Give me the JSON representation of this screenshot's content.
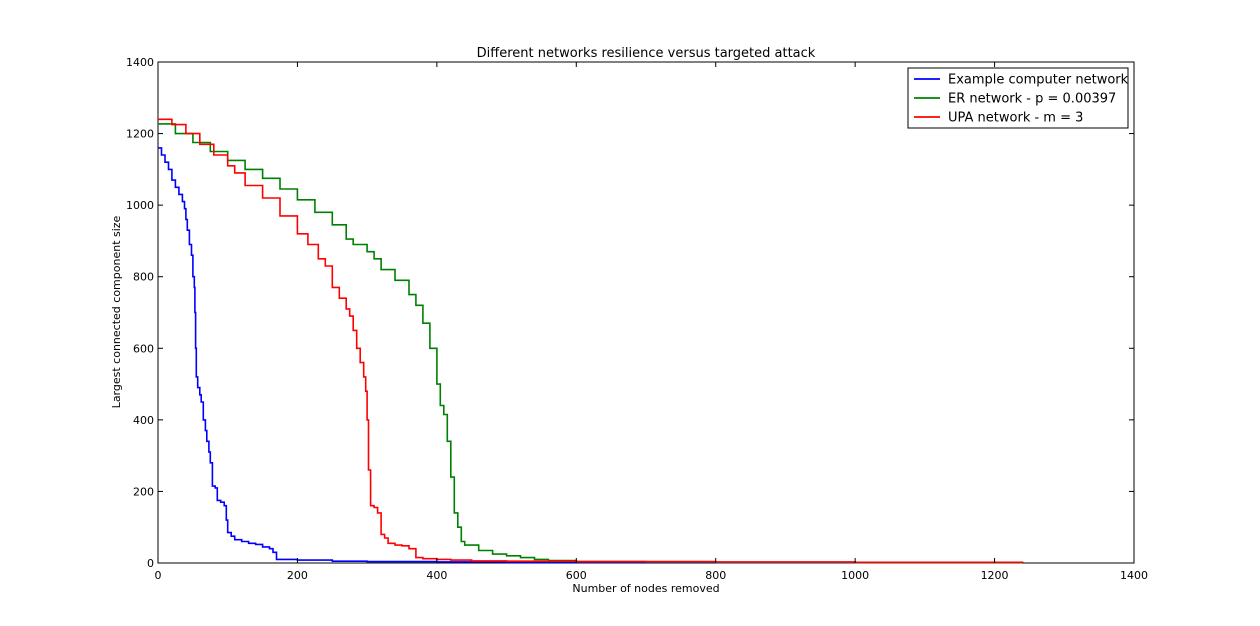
{
  "chart_data": {
    "type": "line",
    "title": "Different networks resilience versus targeted attack",
    "xlabel": "Number of nodes removed",
    "ylabel": "Largest connected component size",
    "xlim": [
      0,
      1400
    ],
    "ylim": [
      0,
      1400
    ],
    "xticks": [
      0,
      200,
      400,
      600,
      800,
      1000,
      1200,
      1400
    ],
    "yticks": [
      0,
      200,
      400,
      600,
      800,
      1000,
      1200,
      1400
    ],
    "grid": false,
    "legend_position": "top-right",
    "series": [
      {
        "name": "Example computer network",
        "color": "#0000ff",
        "points": [
          [
            0,
            1160
          ],
          [
            5,
            1140
          ],
          [
            10,
            1120
          ],
          [
            15,
            1100
          ],
          [
            20,
            1070
          ],
          [
            25,
            1050
          ],
          [
            30,
            1030
          ],
          [
            35,
            1010
          ],
          [
            38,
            990
          ],
          [
            40,
            960
          ],
          [
            42,
            930
          ],
          [
            45,
            890
          ],
          [
            48,
            860
          ],
          [
            50,
            800
          ],
          [
            52,
            770
          ],
          [
            53,
            700
          ],
          [
            54,
            600
          ],
          [
            55,
            520
          ],
          [
            57,
            490
          ],
          [
            60,
            470
          ],
          [
            62,
            450
          ],
          [
            65,
            400
          ],
          [
            68,
            370
          ],
          [
            70,
            340
          ],
          [
            73,
            310
          ],
          [
            75,
            280
          ],
          [
            78,
            215
          ],
          [
            82,
            210
          ],
          [
            85,
            175
          ],
          [
            90,
            170
          ],
          [
            95,
            160
          ],
          [
            98,
            120
          ],
          [
            100,
            85
          ],
          [
            105,
            75
          ],
          [
            110,
            65
          ],
          [
            120,
            60
          ],
          [
            130,
            55
          ],
          [
            140,
            52
          ],
          [
            150,
            45
          ],
          [
            160,
            40
          ],
          [
            165,
            30
          ],
          [
            170,
            10
          ],
          [
            200,
            8
          ],
          [
            250,
            5
          ],
          [
            300,
            4
          ],
          [
            400,
            3
          ],
          [
            500,
            2
          ],
          [
            600,
            2
          ],
          [
            800,
            1
          ],
          [
            1000,
            1
          ],
          [
            1240,
            1
          ]
        ]
      },
      {
        "name": "ER network - p = 0.00397",
        "color": "#008000",
        "points": [
          [
            0,
            1227
          ],
          [
            25,
            1200
          ],
          [
            50,
            1175
          ],
          [
            75,
            1150
          ],
          [
            100,
            1125
          ],
          [
            125,
            1100
          ],
          [
            150,
            1075
          ],
          [
            175,
            1045
          ],
          [
            200,
            1015
          ],
          [
            225,
            980
          ],
          [
            250,
            945
          ],
          [
            270,
            905
          ],
          [
            280,
            890
          ],
          [
            300,
            870
          ],
          [
            310,
            850
          ],
          [
            320,
            820
          ],
          [
            340,
            790
          ],
          [
            360,
            750
          ],
          [
            370,
            720
          ],
          [
            380,
            670
          ],
          [
            390,
            600
          ],
          [
            400,
            500
          ],
          [
            405,
            440
          ],
          [
            410,
            415
          ],
          [
            415,
            340
          ],
          [
            420,
            240
          ],
          [
            425,
            140
          ],
          [
            430,
            100
          ],
          [
            435,
            60
          ],
          [
            440,
            50
          ],
          [
            460,
            35
          ],
          [
            480,
            25
          ],
          [
            500,
            20
          ],
          [
            520,
            15
          ],
          [
            540,
            10
          ],
          [
            560,
            7
          ],
          [
            600,
            4
          ],
          [
            700,
            3
          ],
          [
            800,
            2
          ],
          [
            1000,
            1
          ],
          [
            1240,
            1
          ]
        ]
      },
      {
        "name": "UPA network - m = 3",
        "color": "#ff0000",
        "points": [
          [
            0,
            1240
          ],
          [
            20,
            1225
          ],
          [
            40,
            1200
          ],
          [
            60,
            1170
          ],
          [
            80,
            1140
          ],
          [
            100,
            1110
          ],
          [
            110,
            1090
          ],
          [
            125,
            1055
          ],
          [
            150,
            1020
          ],
          [
            175,
            970
          ],
          [
            200,
            920
          ],
          [
            215,
            890
          ],
          [
            230,
            850
          ],
          [
            240,
            830
          ],
          [
            250,
            770
          ],
          [
            260,
            740
          ],
          [
            270,
            710
          ],
          [
            275,
            690
          ],
          [
            280,
            650
          ],
          [
            285,
            600
          ],
          [
            290,
            560
          ],
          [
            295,
            520
          ],
          [
            298,
            480
          ],
          [
            300,
            400
          ],
          [
            302,
            260
          ],
          [
            305,
            160
          ],
          [
            310,
            155
          ],
          [
            315,
            140
          ],
          [
            320,
            80
          ],
          [
            325,
            70
          ],
          [
            330,
            55
          ],
          [
            340,
            50
          ],
          [
            350,
            48
          ],
          [
            360,
            40
          ],
          [
            370,
            15
          ],
          [
            380,
            12
          ],
          [
            400,
            10
          ],
          [
            420,
            8
          ],
          [
            450,
            6
          ],
          [
            500,
            5
          ],
          [
            600,
            4
          ],
          [
            800,
            3
          ],
          [
            1000,
            2
          ],
          [
            1240,
            1
          ]
        ]
      }
    ]
  }
}
